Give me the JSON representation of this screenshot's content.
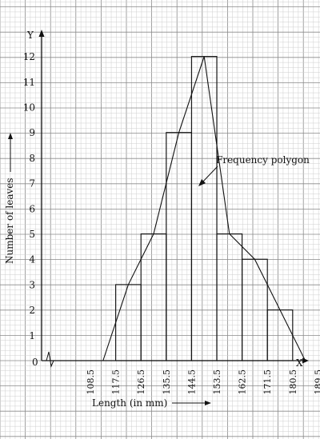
{
  "chart_data": {
    "type": "histogram",
    "x_axis_letter": "X",
    "y_axis_letter": "Y",
    "origin_label": "0",
    "xlabel": "Length (in mm)",
    "ylabel": "Number of leaves",
    "x_ticks": [
      "108.5",
      "117.5",
      "126.5",
      "135.5",
      "144.5",
      "153.5",
      "162.5",
      "171.5",
      "180.5",
      "189.5"
    ],
    "y_ticks": [
      1,
      2,
      3,
      4,
      5,
      6,
      7,
      8,
      9,
      10,
      11,
      12
    ],
    "ylim": [
      0,
      12.5
    ],
    "bins": [
      {
        "from": 117.5,
        "to": 126.5,
        "value": 3
      },
      {
        "from": 126.5,
        "to": 135.5,
        "value": 5
      },
      {
        "from": 135.5,
        "to": 144.5,
        "value": 9
      },
      {
        "from": 144.5,
        "to": 153.5,
        "value": 12
      },
      {
        "from": 153.5,
        "to": 162.5,
        "value": 5
      },
      {
        "from": 162.5,
        "to": 171.5,
        "value": 4
      },
      {
        "from": 171.5,
        "to": 180.5,
        "value": 2
      }
    ],
    "polygon": {
      "x": [
        113,
        122,
        131,
        140,
        149,
        158,
        167,
        176,
        185
      ],
      "y": [
        0,
        3,
        5,
        9,
        12,
        5,
        4,
        2,
        0
      ]
    },
    "annotation": "Frequency polygon",
    "grid": true
  }
}
